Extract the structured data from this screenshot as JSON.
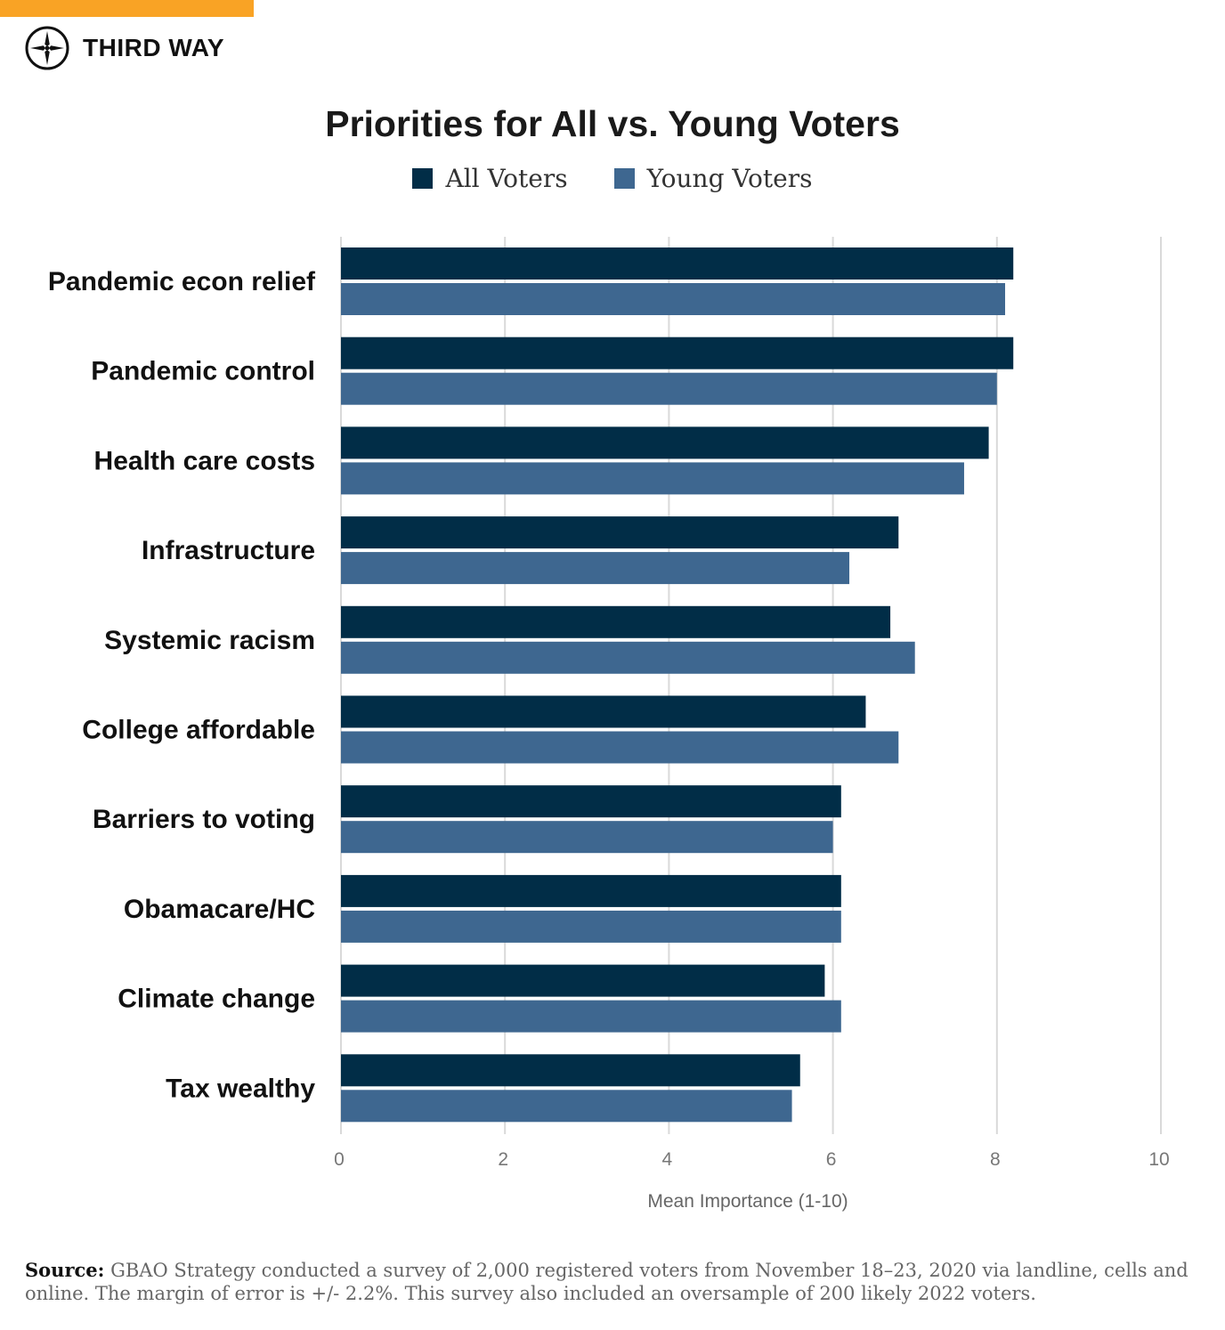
{
  "brand": {
    "name": "THIRD WAY",
    "accent_color": "#f9a325",
    "icon": "compass-icon"
  },
  "chart_data": {
    "type": "bar",
    "orientation": "horizontal",
    "title": "Priorities for All vs. Young Voters",
    "xlabel": "Mean Importance (1-10)",
    "ylabel": "",
    "xlim": [
      0,
      10
    ],
    "x_ticks": [
      "0",
      "2",
      "4",
      "6",
      "8",
      "10"
    ],
    "grid": true,
    "legend_position": "top-center",
    "categories": [
      "Pandemic econ relief",
      "Pandemic control",
      "Health care costs",
      "Infrastructure",
      "Systemic racism",
      "College affordable",
      "Barriers to voting",
      "Obamacare/HC",
      "Climate change",
      "Tax wealthy"
    ],
    "series": [
      {
        "name": "All Voters",
        "color": "#012d47",
        "values": [
          8.2,
          8.2,
          7.9,
          6.8,
          6.7,
          6.4,
          6.1,
          6.1,
          5.9,
          5.6
        ]
      },
      {
        "name": "Young Voters",
        "color": "#3e6790",
        "values": [
          8.1,
          8.0,
          7.6,
          6.2,
          7.0,
          6.8,
          6.0,
          6.1,
          6.1,
          5.5
        ]
      }
    ]
  },
  "source": {
    "label": "Source:",
    "text": "GBAO Strategy conducted a survey of 2,000 registered voters from November 18–23, 2020 via landline, cells and online. The margin of error is +/- 2.2%. This survey also included an oversample of 200 likely 2022 voters."
  }
}
